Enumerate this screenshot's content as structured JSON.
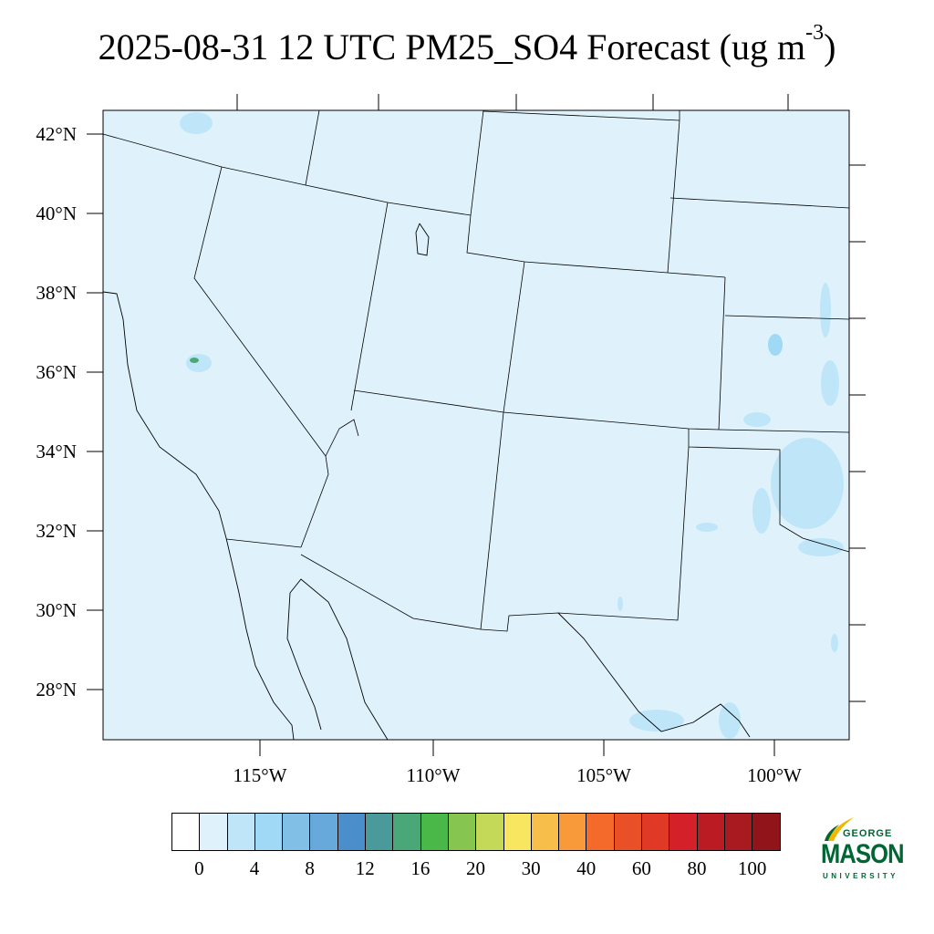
{
  "title": {
    "main": "2025-08-31 12 UTC PM25_SO4 Forecast (ug m",
    "superscript": "-3",
    "close": ")"
  },
  "map": {
    "background_color": "#dff2fb",
    "lat_labels": [
      "42°N",
      "40°N",
      "38°N",
      "36°N",
      "34°N",
      "32°N",
      "30°N",
      "28°N"
    ],
    "lon_labels": [
      "115°W",
      "110°W",
      "105°W",
      "100°W"
    ]
  },
  "colorbar": {
    "colors": [
      "#ffffff",
      "#dff2fb",
      "#bfe6f8",
      "#a0d9f5",
      "#82bfe6",
      "#68a9dc",
      "#4a8fcc",
      "#4a9a9c",
      "#4aa878",
      "#4ab849",
      "#86c550",
      "#c5d958",
      "#f8e660",
      "#f8be4a",
      "#f8993a",
      "#f46a2a",
      "#ea5028",
      "#e03a26",
      "#d42028",
      "#bb1c24",
      "#a81a20",
      "#90141a"
    ],
    "labels": [
      "0",
      "4",
      "8",
      "12",
      "16",
      "20",
      "30",
      "40",
      "60",
      "80",
      "100"
    ]
  },
  "logo": {
    "line1": "GEORGE",
    "line2": "MASON",
    "line3": "UNIVERSITY"
  }
}
